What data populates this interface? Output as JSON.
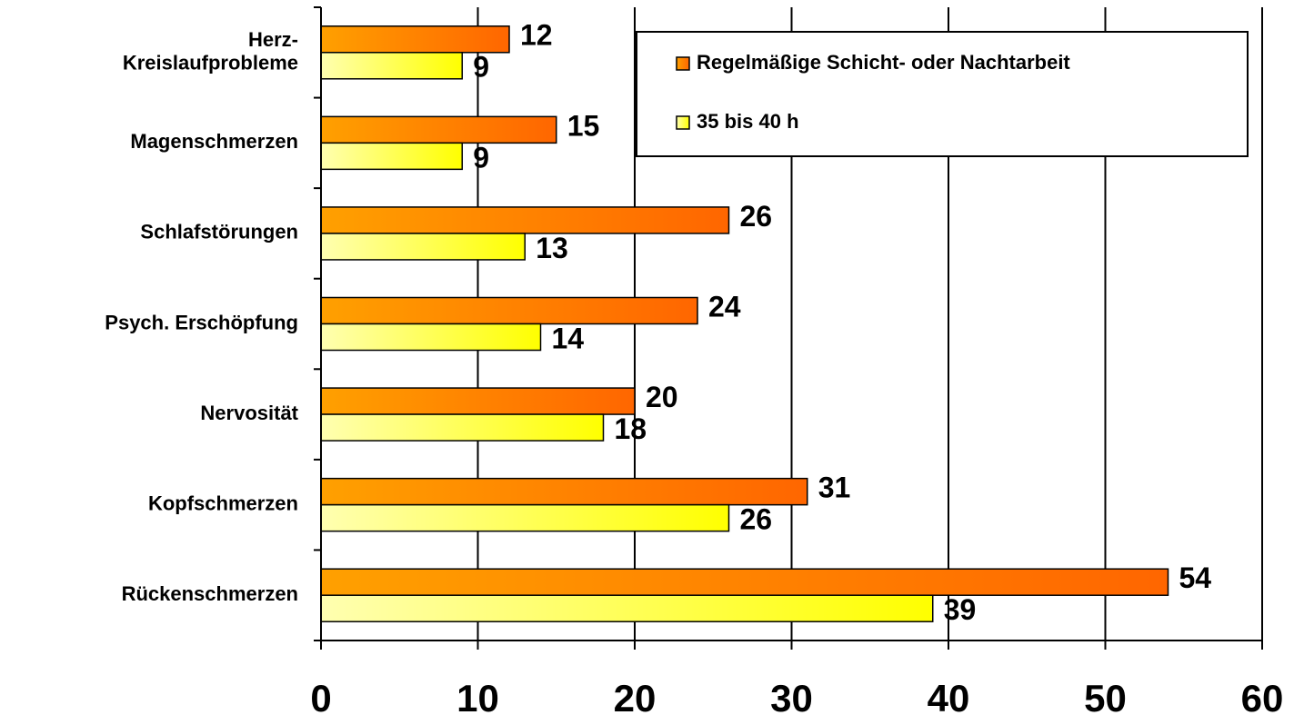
{
  "chart_data": {
    "type": "hbar",
    "categories": [
      "Herz-\nKreislaufprobleme",
      "Magenschmerzen",
      "Schlafstörungen",
      "Psych. Erschöpfung",
      "Nervosität",
      "Kopfschmerzen",
      "Rückenschmerzen"
    ],
    "series": [
      {
        "name": "Regelmäßige Schicht- oder Nachtarbeit",
        "color": "#ff6600",
        "values": [
          12,
          15,
          26,
          24,
          20,
          31,
          54
        ]
      },
      {
        "name": "35 bis 40 h",
        "color": "#ffff00",
        "values": [
          9,
          9,
          13,
          14,
          18,
          26,
          39
        ]
      }
    ],
    "xlim": [
      0,
      60
    ],
    "xticks": [
      0,
      10,
      20,
      30,
      40,
      50,
      60
    ],
    "grid": true,
    "legend": "top-right"
  }
}
